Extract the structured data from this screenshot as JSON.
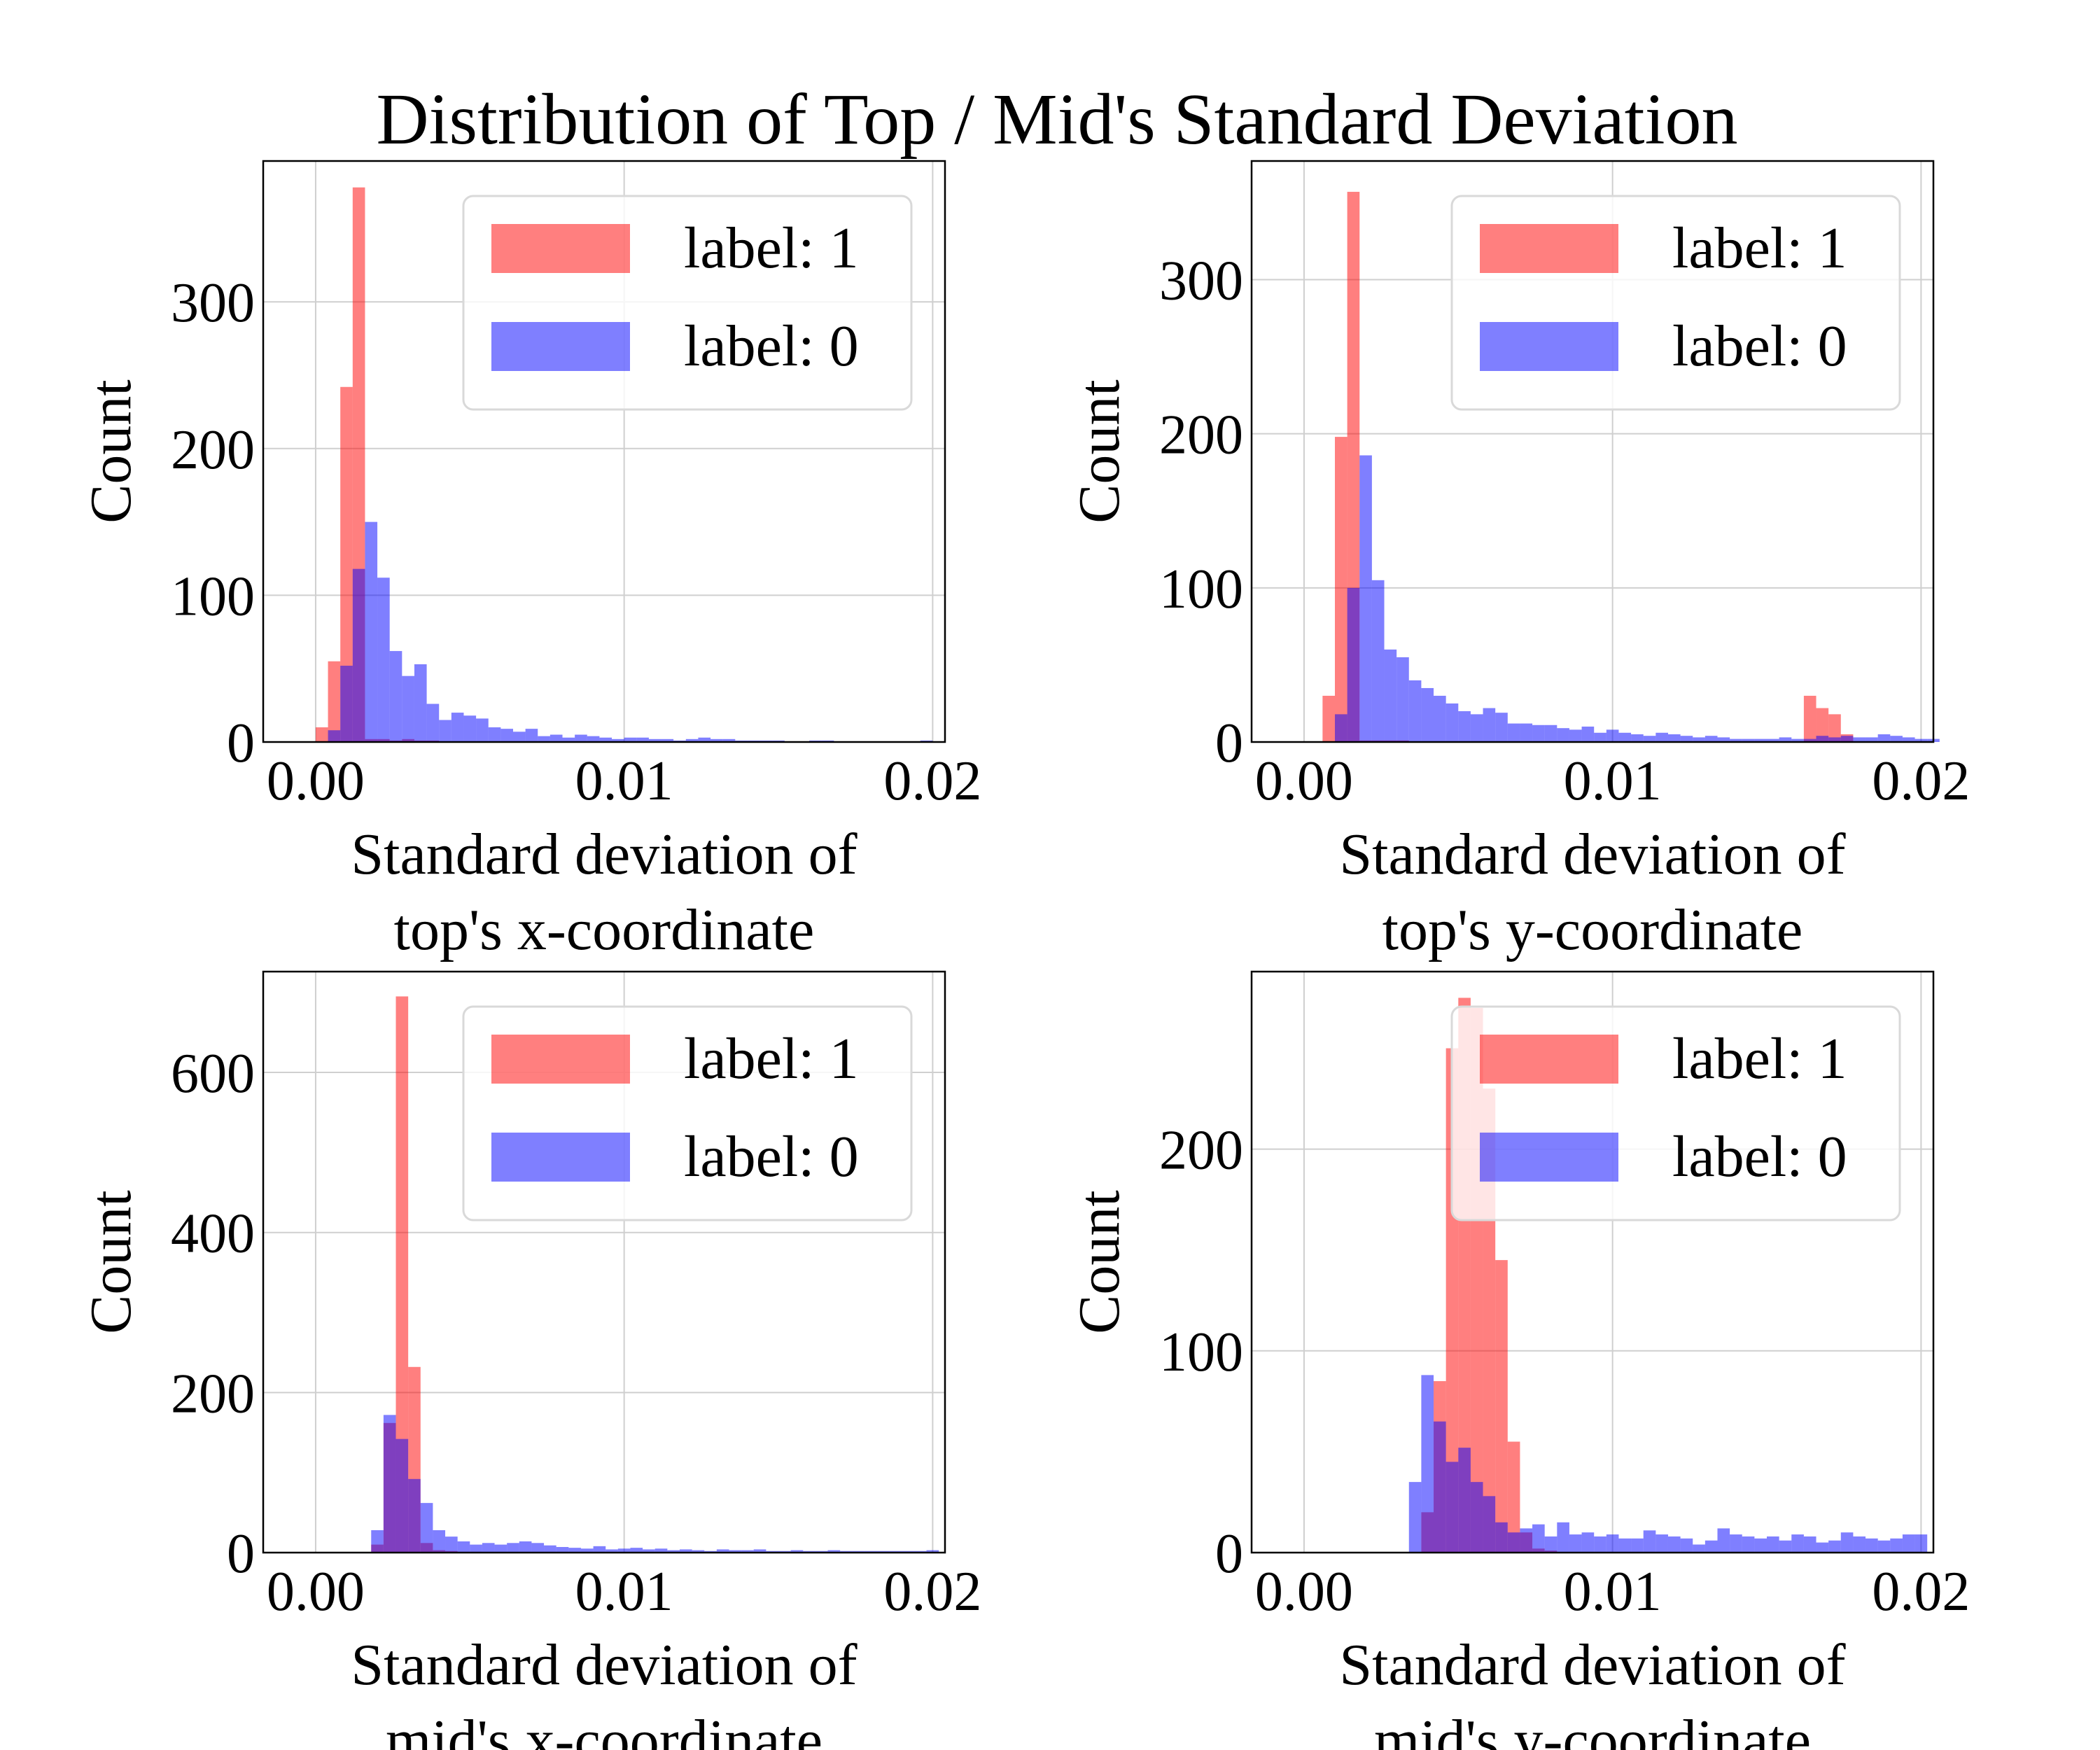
{
  "figure": {
    "title": "Distribution of Top / Mid's Standard Deviation",
    "colors": {
      "label_1": "#ff0000",
      "label_0": "#0000ff"
    },
    "bar_opacity": 0.5
  },
  "chart_data": [
    {
      "type": "bar",
      "ylabel": "Count",
      "xlabel_lines": [
        "Standard deviation of",
        "top's x-coordinate"
      ],
      "xlim": [
        -0.0017,
        0.0204
      ],
      "ylim": [
        0,
        396
      ],
      "xticks": [
        0.0,
        0.01,
        0.02
      ],
      "xtick_labels": [
        "0.00",
        "0.01",
        "0.02"
      ],
      "yticks": [
        0,
        100,
        200,
        300
      ],
      "ytick_labels": [
        "0",
        "100",
        "200",
        "300"
      ],
      "grid": true,
      "legend_position": "top-right",
      "legend": [
        "label: 1",
        "label: 0"
      ],
      "series": [
        {
          "name": "label: 1",
          "color": "#ff0000",
          "bin_start": 0.0,
          "bin_width": 0.0004,
          "values": [
            10,
            55,
            242,
            378,
            2,
            2,
            1,
            2,
            1,
            1,
            0,
            0,
            0,
            0,
            0,
            0,
            0,
            0,
            0,
            0,
            0,
            0,
            0,
            0,
            0,
            0,
            0,
            0,
            0,
            0,
            0,
            0,
            0,
            0,
            0,
            0,
            0,
            0,
            0,
            0,
            0,
            0,
            0,
            0,
            0,
            0,
            0,
            0,
            0,
            0
          ]
        },
        {
          "name": "label: 0",
          "color": "#0000ff",
          "bin_start": 0.0,
          "bin_width": 0.0004,
          "values": [
            0,
            8,
            52,
            118,
            150,
            112,
            62,
            45,
            53,
            26,
            15,
            20,
            18,
            16,
            10,
            9,
            7,
            9,
            4,
            5,
            3,
            5,
            4,
            3,
            2,
            3,
            3,
            2,
            2,
            1,
            2,
            3,
            2,
            2,
            1,
            1,
            1,
            1,
            0,
            0,
            1,
            1,
            0,
            0,
            0,
            0,
            0,
            0,
            0,
            1
          ]
        }
      ]
    },
    {
      "type": "bar",
      "ylabel": "Count",
      "xlabel_lines": [
        "Standard deviation of",
        "top's y-coordinate"
      ],
      "xlim": [
        -0.0017,
        0.0204
      ],
      "ylim": [
        0,
        377
      ],
      "xticks": [
        0.0,
        0.01,
        0.02
      ],
      "xtick_labels": [
        "0.00",
        "0.01",
        "0.02"
      ],
      "yticks": [
        0,
        100,
        200,
        300
      ],
      "ytick_labels": [
        "0",
        "100",
        "200",
        "300"
      ],
      "grid": true,
      "legend_position": "top-right",
      "legend": [
        "label: 1",
        "label: 0"
      ],
      "series": [
        {
          "name": "label: 1",
          "color": "#ff0000",
          "bin_start": 0.0006,
          "bin_width": 0.0004,
          "values": [
            30,
            198,
            357,
            1,
            1,
            1,
            1,
            0,
            0,
            0,
            0,
            0,
            0,
            0,
            0,
            0,
            0,
            0,
            0,
            0,
            0,
            0,
            0,
            0,
            0,
            0,
            0,
            0,
            0,
            0,
            0,
            0,
            0,
            0,
            0,
            0,
            0,
            0,
            0,
            30,
            22,
            18,
            5,
            0,
            0,
            0,
            0,
            0,
            0,
            0
          ]
        },
        {
          "name": "label: 0",
          "color": "#0000ff",
          "bin_start": 0.0006,
          "bin_width": 0.0004,
          "values": [
            0,
            18,
            100,
            186,
            105,
            60,
            55,
            40,
            35,
            30,
            25,
            20,
            18,
            22,
            19,
            12,
            12,
            11,
            11,
            9,
            8,
            10,
            6,
            8,
            6,
            5,
            4,
            6,
            5,
            4,
            3,
            4,
            3,
            2,
            2,
            2,
            2,
            3,
            2,
            2,
            4,
            3,
            4,
            3,
            3,
            5,
            4,
            3,
            2,
            2
          ]
        }
      ]
    },
    {
      "type": "bar",
      "ylabel": "Count",
      "xlabel_lines": [
        "Standard deviation of",
        "mid's x-coordinate"
      ],
      "xlim": [
        -0.0017,
        0.0204
      ],
      "ylim": [
        0,
        726
      ],
      "xticks": [
        0.0,
        0.01,
        0.02
      ],
      "xtick_labels": [
        "0.00",
        "0.01",
        "0.02"
      ],
      "yticks": [
        0,
        200,
        400,
        600
      ],
      "ytick_labels": [
        "0",
        "200",
        "400",
        "600"
      ],
      "grid": true,
      "legend_position": "top-right",
      "legend": [
        "label: 1",
        "label: 0"
      ],
      "series": [
        {
          "name": "label: 1",
          "color": "#ff0000",
          "bin_start": 0.0018,
          "bin_width": 0.0004,
          "values": [
            10,
            162,
            695,
            232,
            12,
            3,
            2,
            1,
            1,
            0,
            0,
            0,
            0,
            0,
            0,
            0,
            0,
            0,
            0,
            0,
            0,
            0,
            0,
            0,
            0,
            0,
            0,
            0,
            0,
            0,
            0,
            0,
            0,
            0,
            0,
            0,
            0,
            0,
            0,
            0,
            0,
            0,
            0,
            0,
            0,
            0
          ]
        },
        {
          "name": "label: 0",
          "color": "#0000ff",
          "bin_start": 0.0018,
          "bin_width": 0.0004,
          "values": [
            28,
            172,
            142,
            92,
            62,
            28,
            20,
            14,
            10,
            12,
            10,
            12,
            14,
            12,
            9,
            7,
            6,
            5,
            8,
            4,
            5,
            6,
            4,
            5,
            3,
            4,
            3,
            2,
            4,
            3,
            3,
            4,
            2,
            2,
            3,
            2,
            2,
            3,
            2,
            2,
            2,
            2,
            2,
            2,
            2,
            3
          ]
        }
      ]
    },
    {
      "type": "bar",
      "ylabel": "Count",
      "xlabel_lines": [
        "Standard deviation of",
        "mid's y-coordinate"
      ],
      "xlim": [
        -0.0017,
        0.0204
      ],
      "ylim": [
        0,
        288
      ],
      "xticks": [
        0.0,
        0.01,
        0.02
      ],
      "xtick_labels": [
        "0.00",
        "0.01",
        "0.02"
      ],
      "yticks": [
        0,
        100,
        200
      ],
      "ytick_labels": [
        "0",
        "100",
        "200"
      ],
      "grid": true,
      "legend_position": "top-right",
      "legend": [
        "label: 1",
        "label: 0"
      ],
      "series": [
        {
          "name": "label: 1",
          "color": "#ff0000",
          "bin_start": 0.0034,
          "bin_width": 0.0004,
          "values": [
            0,
            20,
            85,
            250,
            275,
            270,
            230,
            145,
            55,
            10,
            2,
            1,
            0,
            0,
            0,
            0,
            0,
            0,
            0,
            0,
            0,
            0,
            0,
            0,
            0,
            0,
            0,
            0,
            0,
            0,
            0,
            0,
            0,
            0,
            0,
            0,
            0,
            0,
            0,
            0,
            0,
            0
          ]
        },
        {
          "name": "label: 0",
          "color": "#0000ff",
          "bin_start": 0.0034,
          "bin_width": 0.0004,
          "values": [
            35,
            88,
            65,
            45,
            52,
            35,
            28,
            15,
            10,
            12,
            14,
            8,
            15,
            9,
            10,
            8,
            9,
            7,
            7,
            11,
            9,
            8,
            7,
            4,
            6,
            12,
            9,
            8,
            7,
            8,
            6,
            9,
            8,
            5,
            6,
            10,
            8,
            7,
            6,
            7,
            9,
            9
          ]
        }
      ]
    }
  ]
}
